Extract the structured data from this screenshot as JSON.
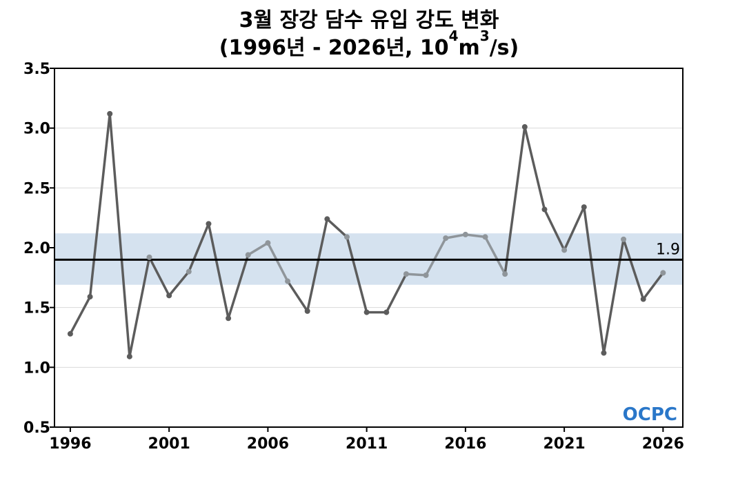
{
  "chart_data": {
    "type": "line",
    "title_line1": "3월 장강 담수 유입 강도 변화",
    "title_line2_prefix": "(1996년 - 2026년, 10",
    "title_line2_exp1": "4",
    "title_line2_mid": "m",
    "title_line2_exp2": "3",
    "title_line2_suffix": "/s)",
    "xlabel": "",
    "ylabel": "",
    "xlim": [
      1995.2,
      2027.0
    ],
    "ylim": [
      0.5,
      3.5
    ],
    "x_ticks": [
      1996,
      2001,
      2006,
      2011,
      2016,
      2021,
      2026
    ],
    "y_ticks": [
      0.5,
      1.0,
      1.5,
      2.0,
      2.5,
      3.0,
      3.5
    ],
    "y_tick_labels": [
      "0.5",
      "1.0",
      "1.5",
      "2.0",
      "2.5",
      "3.0",
      "3.5"
    ],
    "grid": "horizontal",
    "x": [
      1996,
      1997,
      1998,
      1999,
      2000,
      2001,
      2002,
      2003,
      2004,
      2005,
      2006,
      2007,
      2008,
      2009,
      2010,
      2011,
      2012,
      2013,
      2014,
      2015,
      2016,
      2017,
      2018,
      2019,
      2020,
      2021,
      2022,
      2023,
      2024,
      2025,
      2026
    ],
    "values": [
      1.28,
      1.59,
      3.12,
      1.09,
      1.92,
      1.6,
      1.8,
      2.2,
      1.41,
      1.94,
      2.04,
      1.72,
      1.47,
      2.24,
      2.09,
      1.46,
      1.46,
      1.78,
      1.77,
      2.08,
      2.11,
      2.09,
      1.78,
      3.01,
      2.32,
      1.98,
      2.34,
      1.12,
      2.07,
      1.57,
      1.79
    ],
    "mean": 1.9,
    "mean_label": "1.9",
    "band": [
      1.69,
      2.12
    ],
    "logo_text": "OCPC",
    "colors": {
      "line_dark": "#5c5c5c",
      "line_light": "#8f959a",
      "band": "#d5e2ef",
      "mean_line": "#000000",
      "grid": "#d9d9d9",
      "logo": "#2a77c9"
    }
  }
}
